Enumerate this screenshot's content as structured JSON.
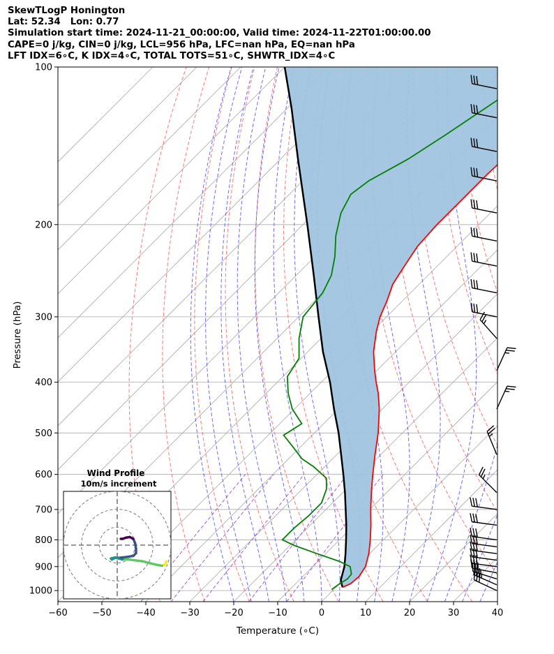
{
  "header": {
    "lines": [
      "SkewTLogP Honington",
      "Lat: 52.34   Lon: 0.77",
      "Simulation start time: 2024-11-21_00:00:00, Valid time: 2024-11-22T01:00:00.00",
      "CAPE=0 j/kg, CIN=0 j/kg, LCL=956 hPa, LFC=nan hPa, EQ=nan hPa",
      "LFT IDX=6∘C, K IDX=4∘C, TOTAL TOTS=51∘C, SHWTR_IDX=4∘C"
    ]
  },
  "chart_data": {
    "type": "skewt-logp",
    "xlabel": "Temperature (∘C)",
    "ylabel": "Pressure (hPa)",
    "xlim": [
      -60,
      40
    ],
    "plim": [
      100,
      1050
    ],
    "xticks": [
      -60,
      -50,
      -40,
      -30,
      -20,
      -10,
      0,
      10,
      20,
      30,
      40
    ],
    "pticks": [
      100,
      200,
      300,
      400,
      500,
      600,
      700,
      800,
      900,
      1000
    ],
    "yscale": "log",
    "grid": true,
    "colors": {
      "temperature": "#ff0000",
      "dewpoint": "#008000",
      "parcel": "#000000",
      "cin_fill": "#a0c4df",
      "dry_adiabat": "#ff6060",
      "moist_adiabat": "#5050ff",
      "mixing_ratio": "#9a40c8",
      "isotherm": "#aaaaaa"
    },
    "temperature": [
      {
        "p": 986,
        "t": 1.5
      },
      {
        "p": 970,
        "t": 2.5
      },
      {
        "p": 940,
        "t": 2.8
      },
      {
        "p": 900,
        "t": 2.0
      },
      {
        "p": 850,
        "t": -0.2
      },
      {
        "p": 800,
        "t": -3.0
      },
      {
        "p": 750,
        "t": -6.2
      },
      {
        "p": 700,
        "t": -9.8
      },
      {
        "p": 650,
        "t": -13.5
      },
      {
        "p": 600,
        "t": -17.3
      },
      {
        "p": 550,
        "t": -21.3
      },
      {
        "p": 500,
        "t": -25.5
      },
      {
        "p": 450,
        "t": -30.7
      },
      {
        "p": 420,
        "t": -34.5
      },
      {
        "p": 400,
        "t": -37.5
      },
      {
        "p": 380,
        "t": -40.5
      },
      {
        "p": 350,
        "t": -45.0
      },
      {
        "p": 320,
        "t": -49.0
      },
      {
        "p": 300,
        "t": -51.5
      },
      {
        "p": 280,
        "t": -53.5
      },
      {
        "p": 260,
        "t": -56.0
      },
      {
        "p": 240,
        "t": -57.5
      },
      {
        "p": 220,
        "t": -59.0
      },
      {
        "p": 200,
        "t": -59.5
      },
      {
        "p": 180,
        "t": -59.5
      },
      {
        "p": 160,
        "t": -59.5
      },
      {
        "p": 140,
        "t": -59.0
      },
      {
        "p": 120,
        "t": -58.5
      },
      {
        "p": 100,
        "t": -57.5
      }
    ],
    "dewpoint": [
      {
        "p": 995,
        "t": -0.5
      },
      {
        "p": 970,
        "t": 0.0
      },
      {
        "p": 950,
        "t": 0.7
      },
      {
        "p": 930,
        "t": 0.5
      },
      {
        "p": 900,
        "t": -1.5
      },
      {
        "p": 880,
        "t": -5.0
      },
      {
        "p": 850,
        "t": -12.0
      },
      {
        "p": 820,
        "t": -19.0
      },
      {
        "p": 800,
        "t": -23.0
      },
      {
        "p": 760,
        "t": -23.0
      },
      {
        "p": 720,
        "t": -22.5
      },
      {
        "p": 680,
        "t": -22.5
      },
      {
        "p": 640,
        "t": -24.5
      },
      {
        "p": 610,
        "t": -27.0
      },
      {
        "p": 580,
        "t": -32.5
      },
      {
        "p": 560,
        "t": -37.0
      },
      {
        "p": 530,
        "t": -42.0
      },
      {
        "p": 505,
        "t": -46.5
      },
      {
        "p": 480,
        "t": -45.0
      },
      {
        "p": 450,
        "t": -50.5
      },
      {
        "p": 420,
        "t": -55.0
      },
      {
        "p": 390,
        "t": -59.0
      },
      {
        "p": 360,
        "t": -60.5
      },
      {
        "p": 330,
        "t": -65.0
      },
      {
        "p": 300,
        "t": -69.0
      },
      {
        "p": 270,
        "t": -70.0
      },
      {
        "p": 250,
        "t": -72.0
      },
      {
        "p": 230,
        "t": -75.5
      },
      {
        "p": 210,
        "t": -80.0
      },
      {
        "p": 190,
        "t": -84.0
      },
      {
        "p": 175,
        "t": -86.0
      },
      {
        "p": 165,
        "t": -85.0
      },
      {
        "p": 150,
        "t": -81.0
      },
      {
        "p": 135,
        "t": -78.0
      },
      {
        "p": 120,
        "t": -75.0
      },
      {
        "p": 100,
        "t": -70.5
      }
    ],
    "parcel": [
      {
        "p": 986,
        "t": 1.5
      },
      {
        "p": 956,
        "t": -0.5
      },
      {
        "p": 900,
        "t": -2.8
      },
      {
        "p": 850,
        "t": -5.5
      },
      {
        "p": 800,
        "t": -8.5
      },
      {
        "p": 750,
        "t": -11.8
      },
      {
        "p": 700,
        "t": -15.5
      },
      {
        "p": 650,
        "t": -19.5
      },
      {
        "p": 600,
        "t": -24.0
      },
      {
        "p": 550,
        "t": -29.0
      },
      {
        "p": 500,
        "t": -34.5
      },
      {
        "p": 450,
        "t": -41.0
      },
      {
        "p": 400,
        "t": -48.0
      },
      {
        "p": 350,
        "t": -56.5
      },
      {
        "p": 300,
        "t": -65.5
      },
      {
        "p": 250,
        "t": -76.0
      },
      {
        "p": 200,
        "t": -89.0
      },
      {
        "p": 150,
        "t": -106.0
      },
      {
        "p": 120,
        "t": -119.0
      },
      {
        "p": 100,
        "t": -130.0
      }
    ],
    "wind_barbs": [
      {
        "p": 1000,
        "u": 15,
        "v": -7
      },
      {
        "p": 975,
        "u": 16,
        "v": -7
      },
      {
        "p": 950,
        "u": 16,
        "v": -5
      },
      {
        "p": 925,
        "u": 16,
        "v": -3
      },
      {
        "p": 900,
        "u": 15,
        "v": -2
      },
      {
        "p": 875,
        "u": 15,
        "v": -2
      },
      {
        "p": 850,
        "u": 15,
        "v": -2
      },
      {
        "p": 825,
        "u": 15,
        "v": -2
      },
      {
        "p": 800,
        "u": 15,
        "v": -2
      },
      {
        "p": 750,
        "u": 15,
        "v": -2
      },
      {
        "p": 700,
        "u": 15,
        "v": -2
      },
      {
        "p": 650,
        "u": 10,
        "v": -10
      },
      {
        "p": 550,
        "u": 5,
        "v": -12
      },
      {
        "p": 450,
        "u": -5,
        "v": -11
      },
      {
        "p": 380,
        "u": -5,
        "v": -11
      },
      {
        "p": 330,
        "u": 8,
        "v": -9
      },
      {
        "p": 300,
        "u": 15,
        "v": -3
      },
      {
        "p": 270,
        "u": 15,
        "v": -3
      },
      {
        "p": 240,
        "u": 15,
        "v": -3
      },
      {
        "p": 215,
        "u": 15,
        "v": -3
      },
      {
        "p": 190,
        "u": 15,
        "v": -3
      },
      {
        "p": 165,
        "u": 15,
        "v": -3
      },
      {
        "p": 145,
        "u": 15,
        "v": -3
      },
      {
        "p": 125,
        "u": 15,
        "v": -3
      },
      {
        "p": 110,
        "u": 15,
        "v": -3
      }
    ],
    "hodograph": {
      "title": "Wind Profile",
      "subtitle": "10m/s increment",
      "rings_ms": [
        10,
        20,
        30
      ],
      "range_ms": 30,
      "points": [
        [
          27.5,
          -9.0
        ],
        [
          27.0,
          -10.0
        ],
        [
          26.5,
          -11.0
        ],
        [
          25.0,
          -11.5
        ],
        [
          22.0,
          -11.0
        ],
        [
          18.0,
          -10.0
        ],
        [
          14.0,
          -9.0
        ],
        [
          10.0,
          -8.5
        ],
        [
          6.0,
          -8.0
        ],
        [
          3.0,
          -8.0
        ],
        [
          1.0,
          -7.5
        ],
        [
          -1.0,
          -7.0
        ],
        [
          -3.0,
          -8.0
        ],
        [
          -3.5,
          -7.5
        ],
        [
          -1.5,
          -7.0
        ],
        [
          2.0,
          -7.0
        ],
        [
          6.0,
          -6.5
        ],
        [
          9.0,
          -6.0
        ],
        [
          10.5,
          -4.5
        ],
        [
          10.5,
          -2.0
        ],
        [
          10.0,
          1.0
        ],
        [
          9.0,
          3.5
        ],
        [
          7.0,
          4.5
        ],
        [
          5.0,
          4.2
        ],
        [
          3.0,
          3.5
        ],
        [
          2.0,
          3.5
        ]
      ]
    }
  }
}
